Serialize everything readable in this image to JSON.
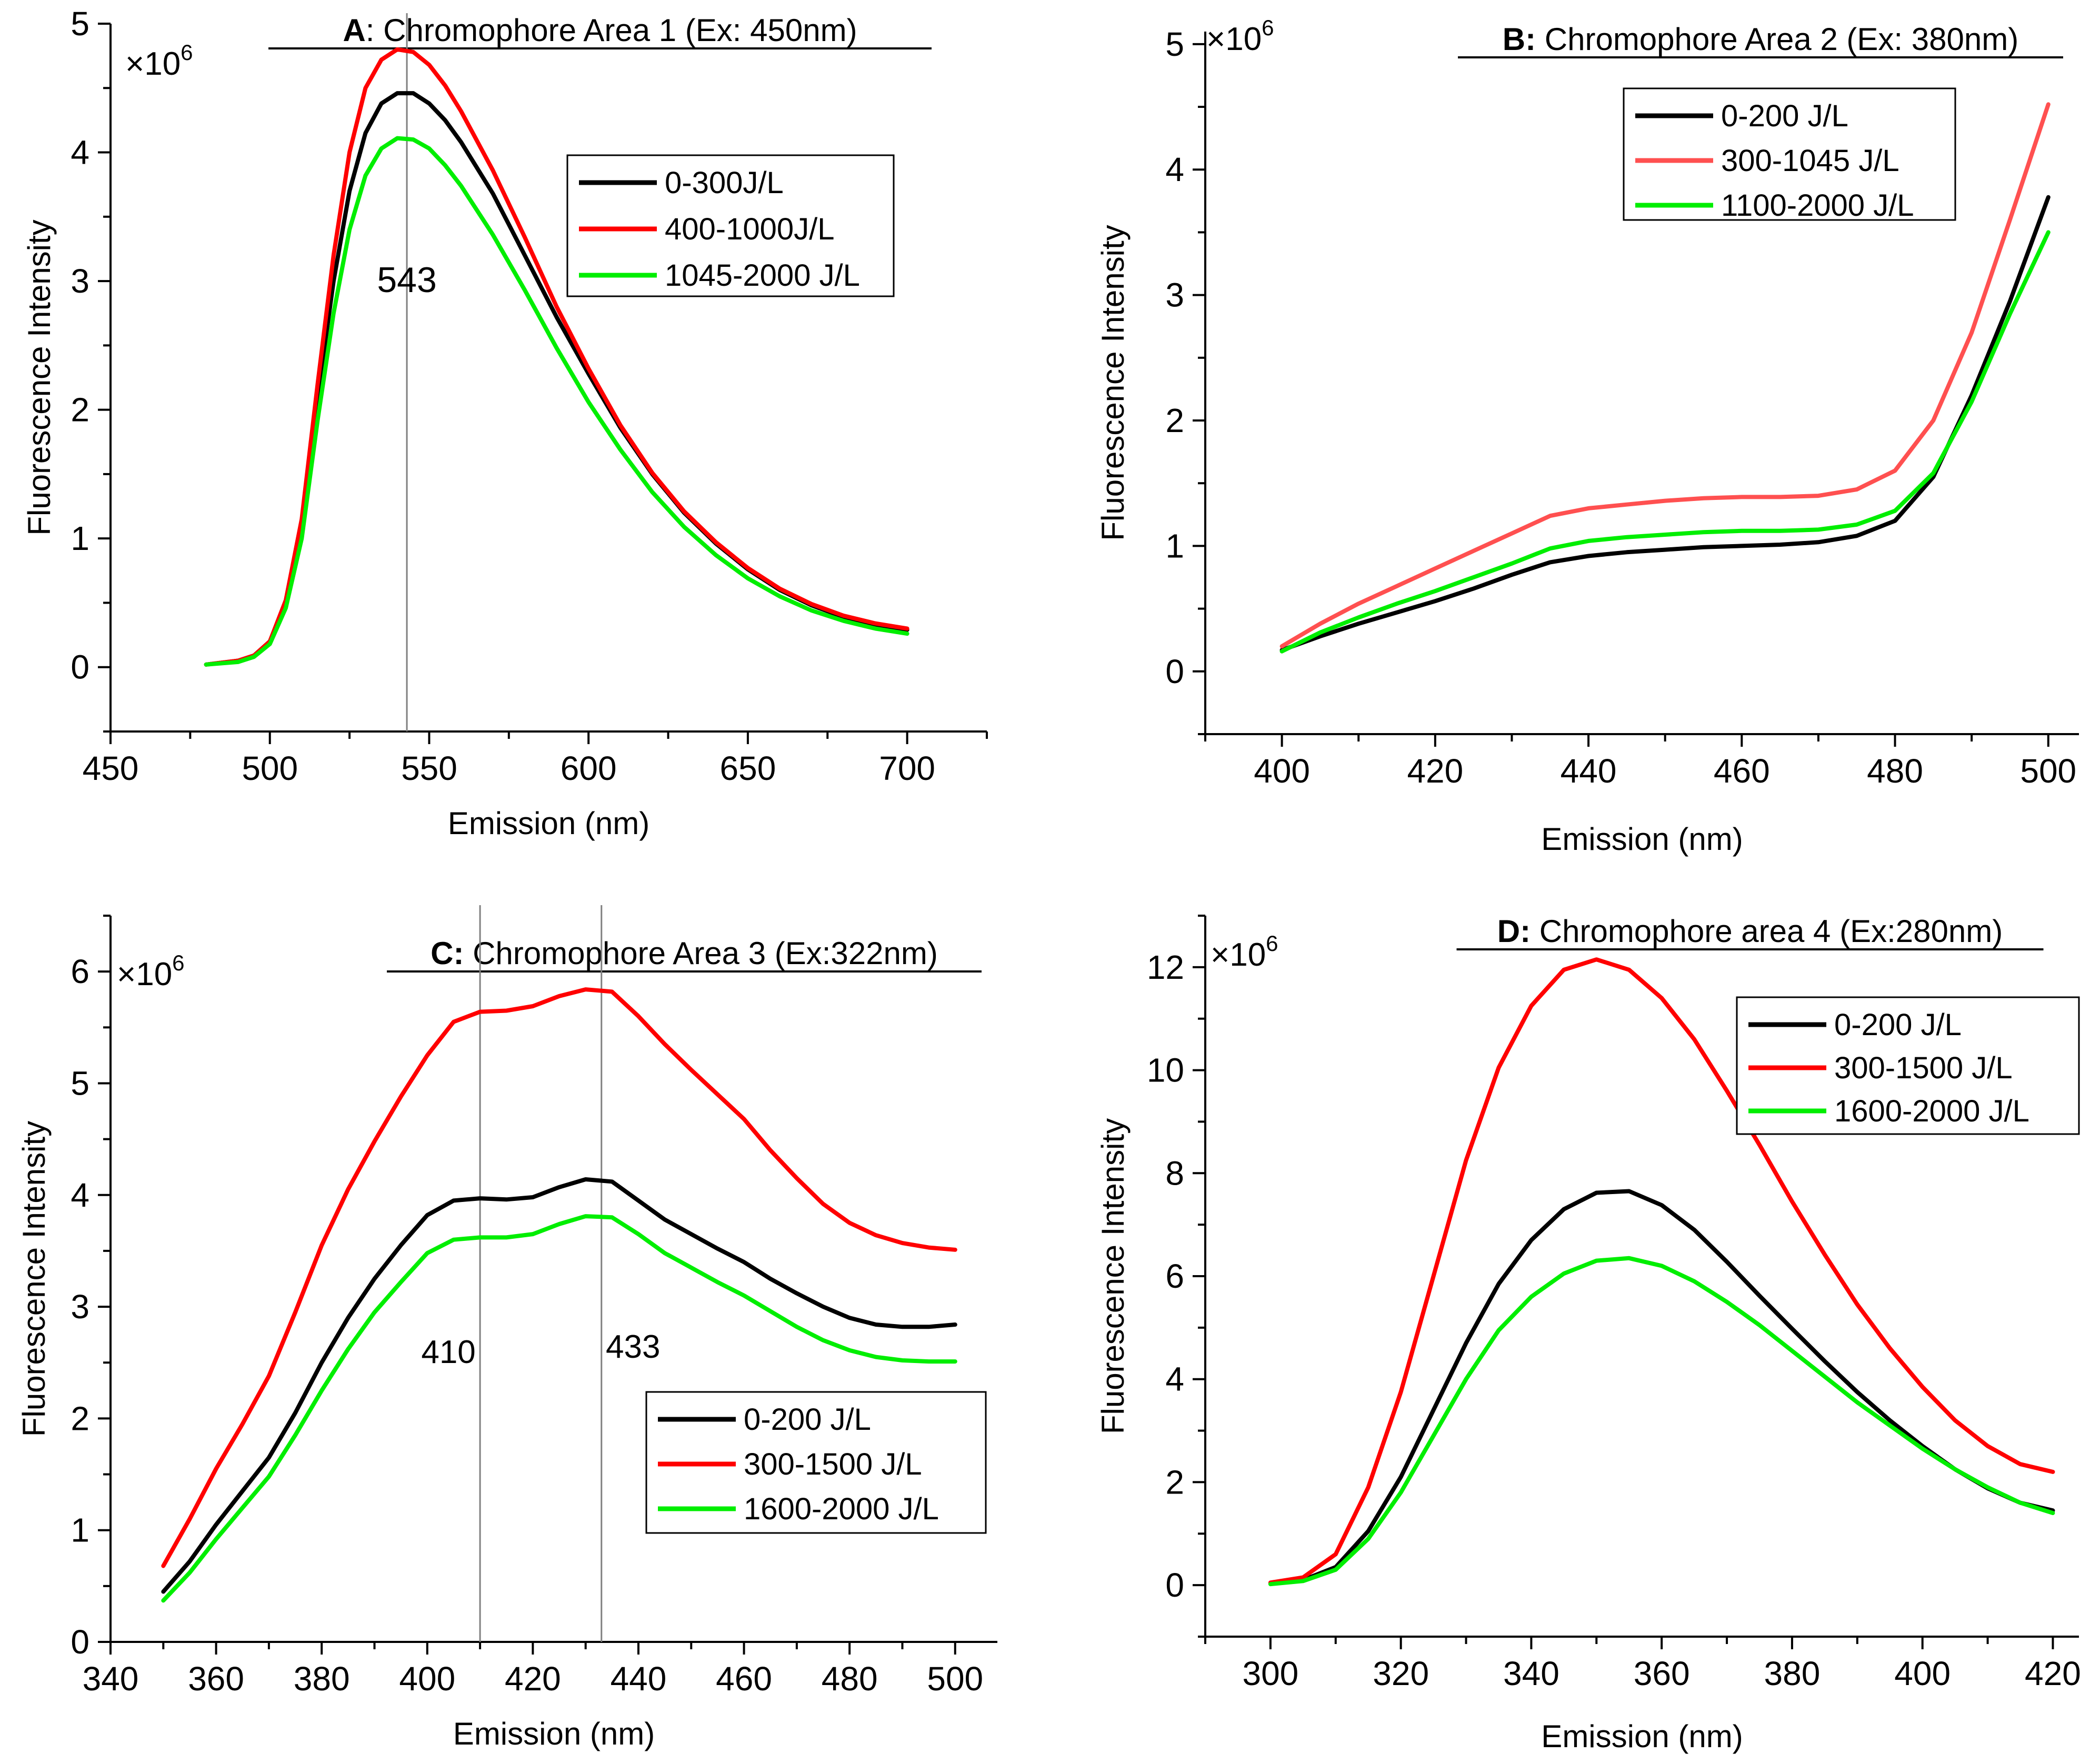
{
  "figure": {
    "chart_data": [
      {
        "panel": "A",
        "type": "line",
        "title_letter": "A",
        "title": ": Chromophore Area 1 (Ex: 450nm)",
        "xlabel": "Emission (nm)",
        "ylabel": "Fluorescence Intensity",
        "multiplier": "×10",
        "multiplier_exp": "6",
        "xlim": [
          450,
          725
        ],
        "ylim": [
          -0.5,
          5
        ],
        "xticks": [
          450,
          500,
          550,
          600,
          650,
          700
        ],
        "xtick_labels": [
          "450",
          "500",
          "550",
          "600",
          "650",
          "700"
        ],
        "yticks": [
          0,
          1,
          2,
          3,
          4,
          5
        ],
        "ytick_labels": [
          "0",
          "1",
          "2",
          "3",
          "4",
          "5"
        ],
        "vlines": [
          {
            "x": 543,
            "label": "543"
          }
        ],
        "legend": "top-right",
        "series": [
          {
            "name": "0-300J/L",
            "color": "#000000",
            "x": [
              480,
              490,
              495,
              500,
              505,
              510,
              515,
              520,
              525,
              530,
              535,
              540,
              545,
              550,
              555,
              560,
              570,
              580,
              590,
              600,
              610,
              620,
              630,
              640,
              650,
              660,
              670,
              680,
              690,
              700
            ],
            "y": [
              0.02,
              0.05,
              0.09,
              0.2,
              0.5,
              1.1,
              2.1,
              3.0,
              3.7,
              4.15,
              4.38,
              4.46,
              4.46,
              4.38,
              4.25,
              4.08,
              3.68,
              3.2,
              2.72,
              2.28,
              1.86,
              1.5,
              1.2,
              0.96,
              0.76,
              0.6,
              0.48,
              0.39,
              0.33,
              0.29
            ]
          },
          {
            "name": "400-1000J/L",
            "color": "#ff0000",
            "x": [
              480,
              490,
              495,
              500,
              505,
              510,
              515,
              520,
              525,
              530,
              535,
              540,
              545,
              550,
              555,
              560,
              570,
              580,
              590,
              600,
              610,
              620,
              630,
              640,
              650,
              660,
              670,
              680,
              690,
              700
            ],
            "y": [
              0.02,
              0.05,
              0.09,
              0.2,
              0.52,
              1.15,
              2.2,
              3.2,
              4.0,
              4.5,
              4.72,
              4.8,
              4.78,
              4.68,
              4.52,
              4.32,
              3.86,
              3.34,
              2.8,
              2.32,
              1.88,
              1.51,
              1.21,
              0.97,
              0.77,
              0.61,
              0.49,
              0.4,
              0.34,
              0.3
            ]
          },
          {
            "name": "1045-2000 J/L",
            "color": "#00ee00",
            "x": [
              480,
              490,
              495,
              500,
              505,
              510,
              515,
              520,
              525,
              530,
              535,
              540,
              545,
              550,
              555,
              560,
              570,
              580,
              590,
              600,
              610,
              620,
              630,
              640,
              650,
              660,
              670,
              680,
              690,
              700
            ],
            "y": [
              0.02,
              0.04,
              0.08,
              0.18,
              0.46,
              1.0,
              1.92,
              2.75,
              3.4,
              3.82,
              4.03,
              4.11,
              4.1,
              4.03,
              3.9,
              3.74,
              3.36,
              2.93,
              2.48,
              2.06,
              1.69,
              1.36,
              1.09,
              0.87,
              0.69,
              0.55,
              0.44,
              0.36,
              0.3,
              0.26
            ]
          }
        ]
      },
      {
        "panel": "B",
        "type": "line",
        "title_letter": "B:",
        "title": " Chromophore Area 2 (Ex: 380nm)",
        "xlabel": "Emission (nm)",
        "ylabel": "Fluorescence Intensity",
        "multiplier": "×10",
        "multiplier_exp": "6",
        "xlim": [
          390,
          504
        ],
        "ylim": [
          -0.5,
          5.1
        ],
        "xticks": [
          400,
          420,
          440,
          460,
          480,
          500
        ],
        "xtick_labels": [
          "400",
          "420",
          "440",
          "460",
          "480",
          "500"
        ],
        "yticks": [
          0,
          1,
          2,
          3,
          4,
          5
        ],
        "ytick_labels": [
          "0",
          "1",
          "2",
          "3",
          "4",
          "5"
        ],
        "vlines": [],
        "legend": "top-center",
        "series": [
          {
            "name": "0-200 J/L",
            "color": "#000000",
            "x": [
              400,
              405,
              410,
              415,
              420,
              425,
              430,
              435,
              440,
              445,
              450,
              455,
              460,
              465,
              470,
              475,
              480,
              485,
              490,
              495,
              500
            ],
            "y": [
              0.17,
              0.28,
              0.38,
              0.47,
              0.56,
              0.66,
              0.77,
              0.87,
              0.92,
              0.95,
              0.97,
              0.99,
              1.0,
              1.01,
              1.03,
              1.08,
              1.2,
              1.55,
              2.2,
              2.95,
              3.78
            ]
          },
          {
            "name": "300-1045 J/L",
            "color": "#ff5050",
            "x": [
              400,
              405,
              410,
              415,
              420,
              425,
              430,
              435,
              440,
              445,
              450,
              455,
              460,
              465,
              470,
              475,
              480,
              485,
              490,
              495,
              500
            ],
            "y": [
              0.2,
              0.38,
              0.54,
              0.68,
              0.82,
              0.96,
              1.1,
              1.24,
              1.3,
              1.33,
              1.36,
              1.38,
              1.39,
              1.39,
              1.4,
              1.45,
              1.6,
              2.0,
              2.7,
              3.6,
              4.52
            ]
          },
          {
            "name": "1100-2000 J/L",
            "color": "#00ee00",
            "x": [
              400,
              405,
              410,
              415,
              420,
              425,
              430,
              435,
              440,
              445,
              450,
              455,
              460,
              465,
              470,
              475,
              480,
              485,
              490,
              495,
              500
            ],
            "y": [
              0.16,
              0.31,
              0.43,
              0.54,
              0.64,
              0.75,
              0.86,
              0.98,
              1.04,
              1.07,
              1.09,
              1.11,
              1.12,
              1.12,
              1.13,
              1.17,
              1.28,
              1.58,
              2.15,
              2.85,
              3.5
            ]
          }
        ]
      },
      {
        "panel": "C",
        "type": "line",
        "title_letter": "C:",
        "title": " Chromophore Area 3 (Ex:322nm)",
        "xlabel": "Emission (nm)",
        "ylabel": "Fluorescence Intensity",
        "multiplier": "×10",
        "multiplier_exp": "6",
        "xlim": [
          340,
          508
        ],
        "ylim": [
          0,
          6.5
        ],
        "xticks": [
          340,
          360,
          380,
          400,
          420,
          440,
          460,
          480,
          500
        ],
        "xtick_labels": [
          "340",
          "360",
          "380",
          "400",
          "420",
          "440",
          "460",
          "480",
          "500"
        ],
        "yticks": [
          0,
          1,
          2,
          3,
          4,
          5,
          6
        ],
        "ytick_labels": [
          "0",
          "1",
          "2",
          "3",
          "4",
          "5",
          "6"
        ],
        "vlines": [
          {
            "x": 410,
            "label": "410"
          },
          {
            "x": 433,
            "label": "433"
          }
        ],
        "legend": "bottom-right",
        "series": [
          {
            "name": "0-200 J/L",
            "color": "#000000",
            "x": [
              350,
              355,
              360,
              365,
              370,
              375,
              380,
              385,
              390,
              395,
              400,
              405,
              410,
              415,
              420,
              425,
              430,
              435,
              440,
              445,
              450,
              455,
              460,
              465,
              470,
              475,
              480,
              485,
              490,
              495,
              500
            ],
            "y": [
              0.45,
              0.72,
              1.05,
              1.35,
              1.65,
              2.05,
              2.5,
              2.9,
              3.25,
              3.55,
              3.82,
              3.95,
              3.97,
              3.96,
              3.98,
              4.07,
              4.14,
              4.12,
              3.95,
              3.78,
              3.65,
              3.52,
              3.4,
              3.25,
              3.12,
              3.0,
              2.9,
              2.84,
              2.82,
              2.82,
              2.84
            ]
          },
          {
            "name": "300-1500 J/L",
            "color": "#ff0000",
            "x": [
              350,
              355,
              360,
              365,
              370,
              375,
              380,
              385,
              390,
              395,
              400,
              405,
              410,
              415,
              420,
              425,
              430,
              435,
              440,
              445,
              450,
              455,
              460,
              465,
              470,
              475,
              480,
              485,
              490,
              495,
              500
            ],
            "y": [
              0.68,
              1.1,
              1.55,
              1.95,
              2.38,
              2.95,
              3.55,
              4.05,
              4.48,
              4.88,
              5.25,
              5.55,
              5.64,
              5.65,
              5.69,
              5.78,
              5.84,
              5.82,
              5.6,
              5.35,
              5.12,
              4.9,
              4.68,
              4.4,
              4.15,
              3.92,
              3.75,
              3.64,
              3.57,
              3.53,
              3.51
            ]
          },
          {
            "name": "1600-2000 J/L",
            "color": "#00ee00",
            "x": [
              350,
              355,
              360,
              365,
              370,
              375,
              380,
              385,
              390,
              395,
              400,
              405,
              410,
              415,
              420,
              425,
              430,
              435,
              440,
              445,
              450,
              455,
              460,
              465,
              470,
              475,
              480,
              485,
              490,
              495,
              500
            ],
            "y": [
              0.37,
              0.62,
              0.92,
              1.2,
              1.48,
              1.85,
              2.25,
              2.62,
              2.95,
              3.22,
              3.48,
              3.6,
              3.62,
              3.62,
              3.65,
              3.74,
              3.81,
              3.8,
              3.65,
              3.48,
              3.35,
              3.22,
              3.1,
              2.96,
              2.82,
              2.7,
              2.61,
              2.55,
              2.52,
              2.51,
              2.51
            ]
          }
        ]
      },
      {
        "panel": "D",
        "type": "line",
        "title_letter": "D:",
        "title": " Chromophore area 4 (Ex:280nm)",
        "xlabel": "Emission (nm)",
        "ylabel": "Fluorescence Intensity",
        "multiplier": "×10",
        "multiplier_exp": "6",
        "xlim": [
          290,
          424
        ],
        "ylim": [
          -1,
          13
        ],
        "xticks": [
          300,
          320,
          340,
          360,
          380,
          400,
          420
        ],
        "xtick_labels": [
          "300",
          "320",
          "340",
          "360",
          "380",
          "400",
          "420"
        ],
        "yticks": [
          0,
          2,
          4,
          6,
          8,
          10,
          12
        ],
        "ytick_labels": [
          "0",
          "2",
          "4",
          "6",
          "8",
          "10",
          "12"
        ],
        "vlines": [],
        "legend": "top-right",
        "series": [
          {
            "name": "0-200 J/L",
            "color": "#000000",
            "x": [
              300,
              305,
              310,
              315,
              320,
              325,
              330,
              335,
              340,
              345,
              350,
              355,
              360,
              365,
              370,
              375,
              380,
              385,
              390,
              395,
              400,
              405,
              410,
              415,
              420
            ],
            "y": [
              0.03,
              0.1,
              0.35,
              1.05,
              2.1,
              3.4,
              4.7,
              5.85,
              6.7,
              7.3,
              7.62,
              7.65,
              7.38,
              6.9,
              6.28,
              5.62,
              4.98,
              4.35,
              3.75,
              3.2,
              2.7,
              2.25,
              1.88,
              1.6,
              1.45
            ]
          },
          {
            "name": "300-1500 J/L",
            "color": "#ff0000",
            "x": [
              300,
              305,
              310,
              315,
              320,
              325,
              330,
              335,
              340,
              345,
              350,
              355,
              360,
              365,
              370,
              375,
              380,
              385,
              390,
              395,
              400,
              405,
              410,
              415,
              420
            ],
            "y": [
              0.05,
              0.15,
              0.6,
              1.9,
              3.75,
              6.0,
              8.25,
              10.05,
              11.25,
              11.95,
              12.15,
              11.95,
              11.4,
              10.6,
              9.6,
              8.55,
              7.45,
              6.42,
              5.45,
              4.6,
              3.85,
              3.2,
              2.7,
              2.35,
              2.2
            ]
          },
          {
            "name": "1600-2000 J/L",
            "color": "#00ee00",
            "x": [
              300,
              305,
              310,
              315,
              320,
              325,
              330,
              335,
              340,
              345,
              350,
              355,
              360,
              365,
              370,
              375,
              380,
              385,
              390,
              395,
              400,
              405,
              410,
              415,
              420
            ],
            "y": [
              0.02,
              0.08,
              0.3,
              0.9,
              1.8,
              2.9,
              4.0,
              4.95,
              5.6,
              6.05,
              6.3,
              6.35,
              6.2,
              5.9,
              5.5,
              5.05,
              4.55,
              4.05,
              3.55,
              3.1,
              2.65,
              2.25,
              1.9,
              1.6,
              1.4
            ]
          }
        ]
      }
    ]
  }
}
